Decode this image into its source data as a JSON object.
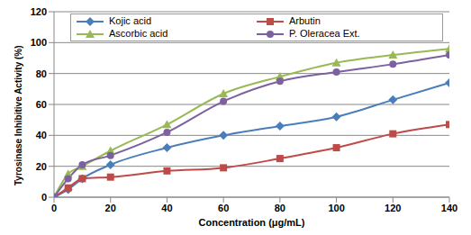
{
  "chart_data": {
    "type": "line",
    "x_label": "Concentration (μg/mL)",
    "y_label": "Tyrosinase Inhibitive Activity (%)",
    "x": [
      0,
      5,
      10,
      20,
      40,
      60,
      80,
      100,
      120,
      140
    ],
    "series": [
      {
        "name": "Kojic acid",
        "color": "#4a7ebb",
        "marker": "diamond",
        "values": [
          0,
          5,
          12,
          21,
          32,
          40,
          46,
          52,
          63,
          74
        ]
      },
      {
        "name": "Arbutin",
        "color": "#be4b48",
        "marker": "square",
        "values": [
          0,
          6,
          12,
          13,
          17,
          19,
          25,
          32,
          41,
          47
        ]
      },
      {
        "name": "Ascorbic acid",
        "color": "#98b954",
        "marker": "triangle",
        "values": [
          0,
          15,
          20,
          30,
          47,
          67,
          78,
          87,
          92,
          96
        ]
      },
      {
        "name": "P. Oleracea Ext.",
        "color": "#7d60a0",
        "marker": "circle",
        "values": [
          0,
          12,
          21,
          27,
          42,
          62,
          75,
          81,
          86,
          92
        ]
      }
    ],
    "xlim": [
      0,
      140
    ],
    "xticks": [
      0,
      20,
      40,
      60,
      80,
      100,
      120,
      140
    ],
    "ylim": [
      0,
      120
    ],
    "yticks": [
      0,
      20,
      40,
      60,
      80,
      100,
      120
    ],
    "grid": true,
    "legend": "top"
  }
}
